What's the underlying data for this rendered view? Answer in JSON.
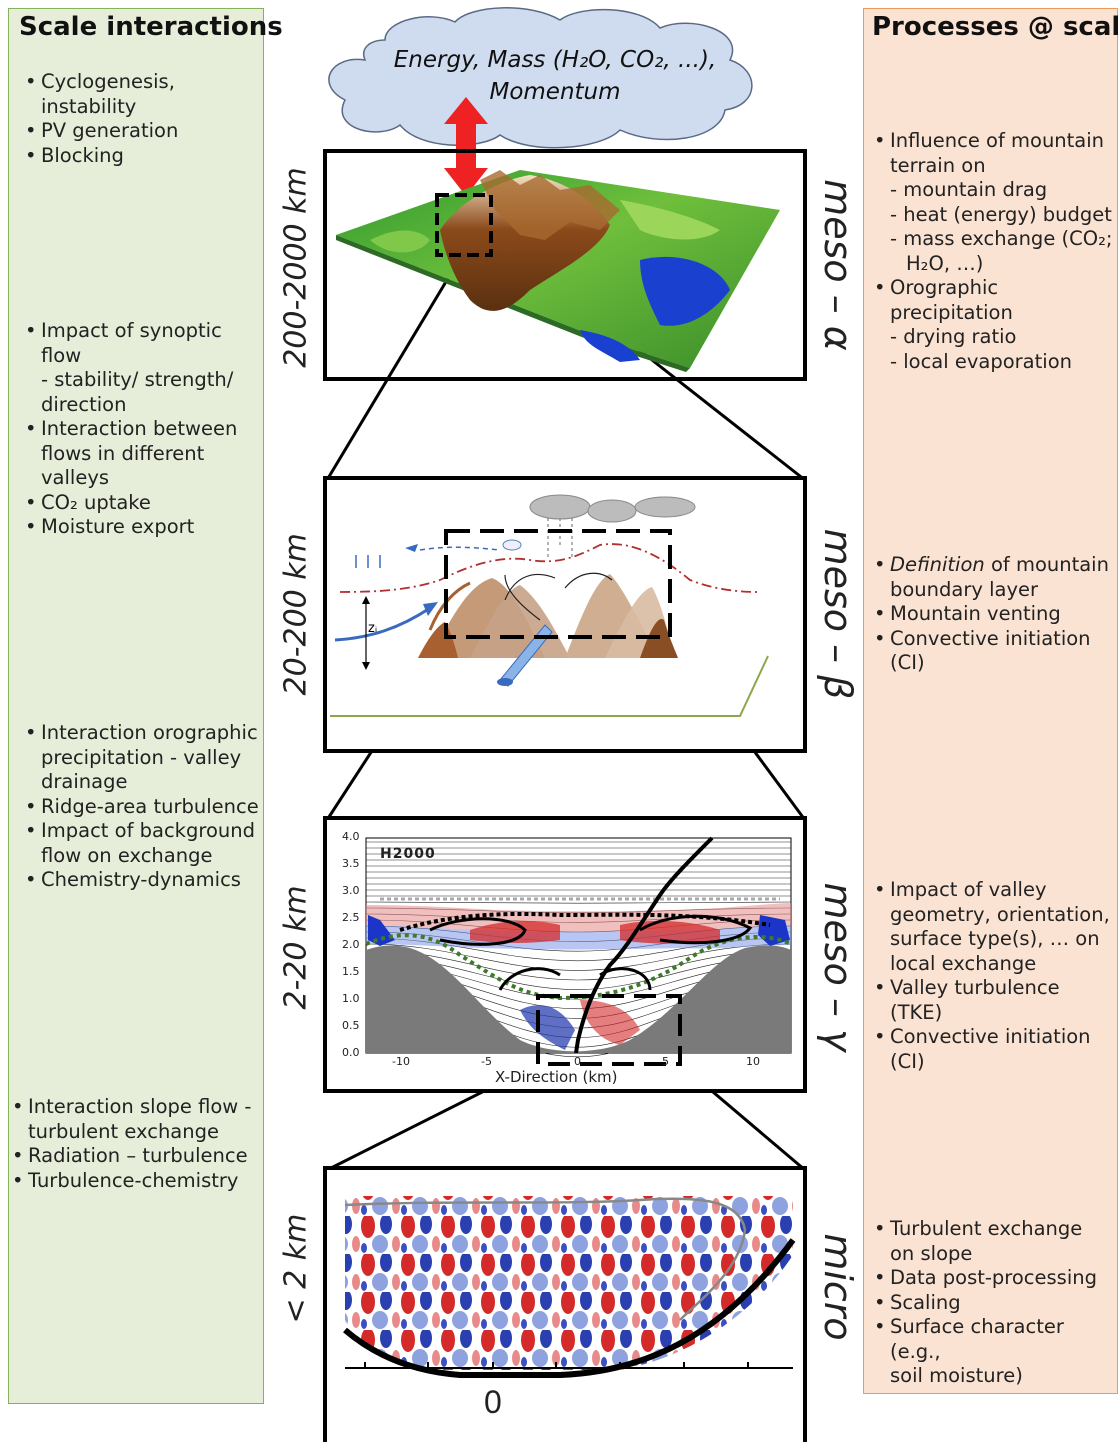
{
  "left_panel": {
    "title": "Scale interactions",
    "groups": [
      [
        "Cyclogenesis, instability",
        "PV generation",
        "Blocking"
      ],
      [
        "Impact of synoptic flow",
        "- stability/ strength/",
        "direction",
        "Interaction between",
        "flows in different valleys",
        "CO₂ uptake",
        "Moisture export"
      ],
      [
        "Interaction orographic",
        "precipitation - valley",
        "drainage",
        "Ridge-area turbulence",
        "Impact of background",
        "flow on exchange",
        "Chemistry-dynamics"
      ],
      [
        "Interaction slope flow -",
        "turbulent exchange",
        "Radiation – turbulence",
        "Turbulence-chemistry"
      ]
    ]
  },
  "right_panel": {
    "title": "Processes @ scale",
    "groups": [
      [
        "Influence of mountain",
        "terrain on",
        "- mountain drag",
        "- heat (energy) budget",
        "- mass exchange (CO₂;",
        "H₂O, …)",
        "Orographic",
        "precipitation",
        "- drying ratio",
        "- local evaporation"
      ],
      [
        "Definition of mountain",
        "boundary layer",
        "Mountain venting",
        "Convective initiation (CI)"
      ],
      [
        "Impact of valley",
        "geometry, orientation,",
        "surface type(s), … on",
        "local exchange",
        "Valley turbulence",
        "(TKE)",
        "Convective  initiation",
        "(CI)"
      ],
      [
        "Turbulent exchange",
        "on slope",
        "Data post-processing",
        "Scaling",
        "Surface character (e.g.,",
        "soil moisture)"
      ]
    ]
  },
  "cloud": {
    "line1": "Energy, Mass (H₂O, CO₂, ...),",
    "line2": "Momentum"
  },
  "scales": [
    {
      "range": "200-2000  km",
      "regime": "meso – α"
    },
    {
      "range": "20-200  km",
      "regime": "meso – β"
    },
    {
      "range": "2-20  km",
      "regime": "meso – γ"
    },
    {
      "range": "< 2 km",
      "regime": "micro"
    }
  ],
  "meso_beta_label": "zᵢ",
  "les_panel": {
    "title": "H2000",
    "xlabel": "X-Direction (km)",
    "xticks": [
      "-10",
      "-5",
      "0",
      "5",
      "10"
    ],
    "yticks": [
      "4.0",
      "3.5",
      "3.0",
      "2.5",
      "2.0",
      "1.5",
      "1.0",
      "0.5",
      "0.0"
    ]
  },
  "micro_panel": {
    "tick_label": "0"
  },
  "colors": {
    "left_bg": "#e6eed9",
    "left_border": "#86b35a",
    "right_bg": "#fbe3d3",
    "right_border": "#ee9a5a",
    "cloud": "#cfdcef",
    "arrow": "#ee2222"
  }
}
